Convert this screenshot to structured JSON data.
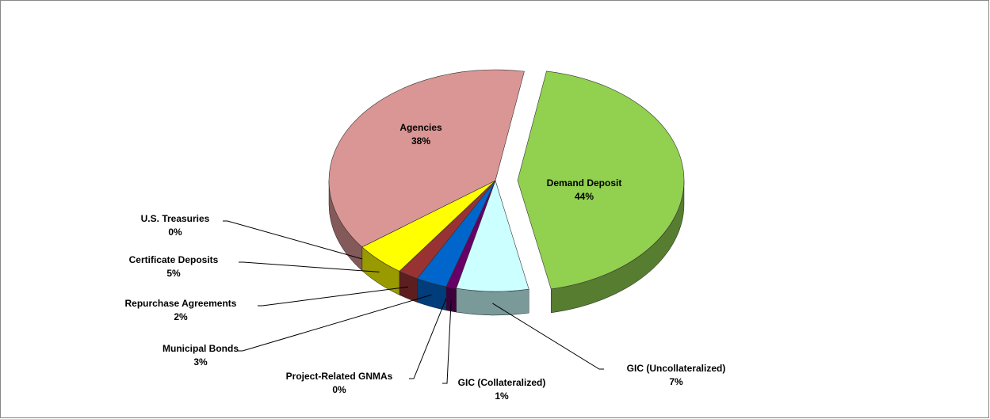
{
  "chart_data": {
    "type": "pie",
    "categories": [
      "Demand Deposit",
      "GIC (Uncollateralized)",
      "GIC (Collateralized)",
      "Project-Related GNMAs",
      "Municipal Bonds",
      "Repurchase Agreements",
      "Certificate Deposits",
      "U.S. Treasuries",
      "Agencies"
    ],
    "values": [
      44,
      7,
      1,
      0,
      3,
      2,
      5,
      0,
      38
    ],
    "value_labels": [
      "44%",
      "7%",
      "1%",
      "0%",
      "3%",
      "2%",
      "5%",
      "0%",
      "38%"
    ],
    "colors": [
      "#92d050",
      "#ccffff",
      "#660066",
      "#ff9966",
      "#0066cc",
      "#993333",
      "#ffff00",
      "#6666cc",
      "#da9694"
    ],
    "exploded": [
      0
    ]
  }
}
